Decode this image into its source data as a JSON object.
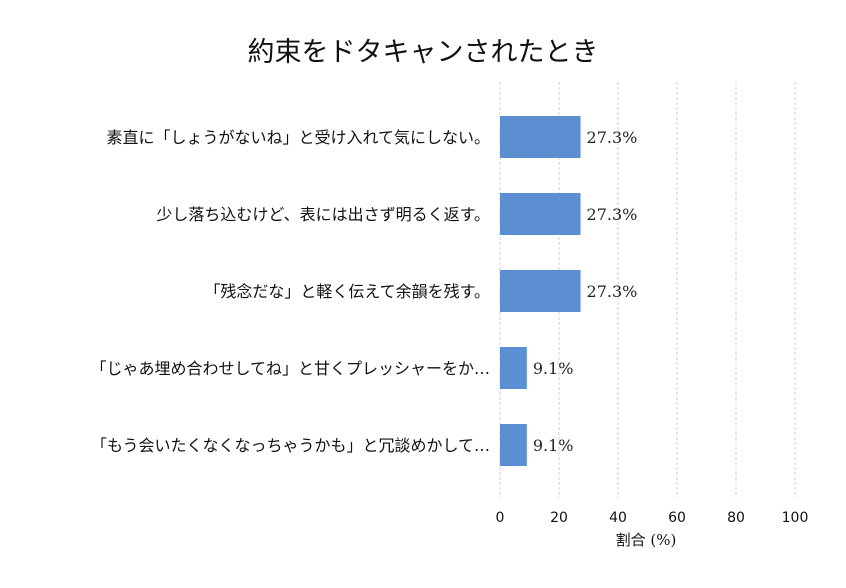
{
  "chart_data": {
    "type": "bar",
    "orientation": "horizontal",
    "title": "約束をドタキャンされたとき",
    "categories": [
      "素直に「しょうがないね」と受け入れて気にしない。",
      "少し落ち込むけど、表には出さず明るく返す。",
      "「残念だな」と軽く伝えて余韻を残す。",
      "「じゃあ埋め合わせしてね」と甘くプレッシャーをか…",
      "「もう会いたくなくなっちゃうかも」と冗談めかして…"
    ],
    "values": [
      27.3,
      27.3,
      27.3,
      9.1,
      9.1
    ],
    "value_labels": [
      "27.3%",
      "27.3%",
      "27.3%",
      "9.1%",
      "9.1%"
    ],
    "xlabel": "割合 (%)",
    "ylabel": "",
    "xlim": [
      0,
      100
    ],
    "xticks": [
      0,
      20,
      40,
      60,
      80,
      100
    ],
    "grid": "vertical-dashed",
    "bar_color": "#5b8fd1"
  }
}
